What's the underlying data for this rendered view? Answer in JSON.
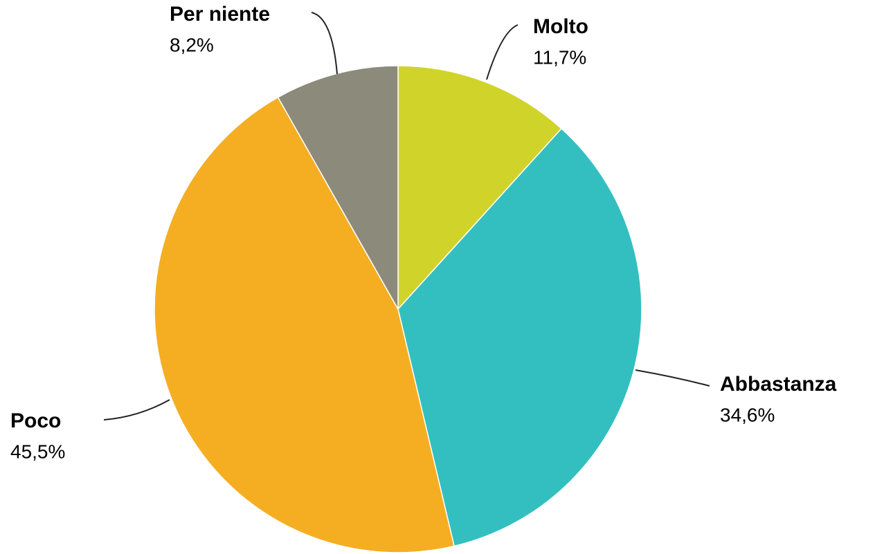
{
  "chart_data": {
    "type": "pie",
    "categories": [
      "Molto",
      "Abbastanza",
      "Poco",
      "Per niente"
    ],
    "values": [
      11.7,
      34.6,
      45.5,
      8.2
    ],
    "value_labels": [
      "11,7%",
      "34,6%",
      "45,5%",
      "8,2%"
    ],
    "colors": [
      "#d0d42a",
      "#33bfbf",
      "#f5ae22",
      "#8c8b7b"
    ]
  }
}
